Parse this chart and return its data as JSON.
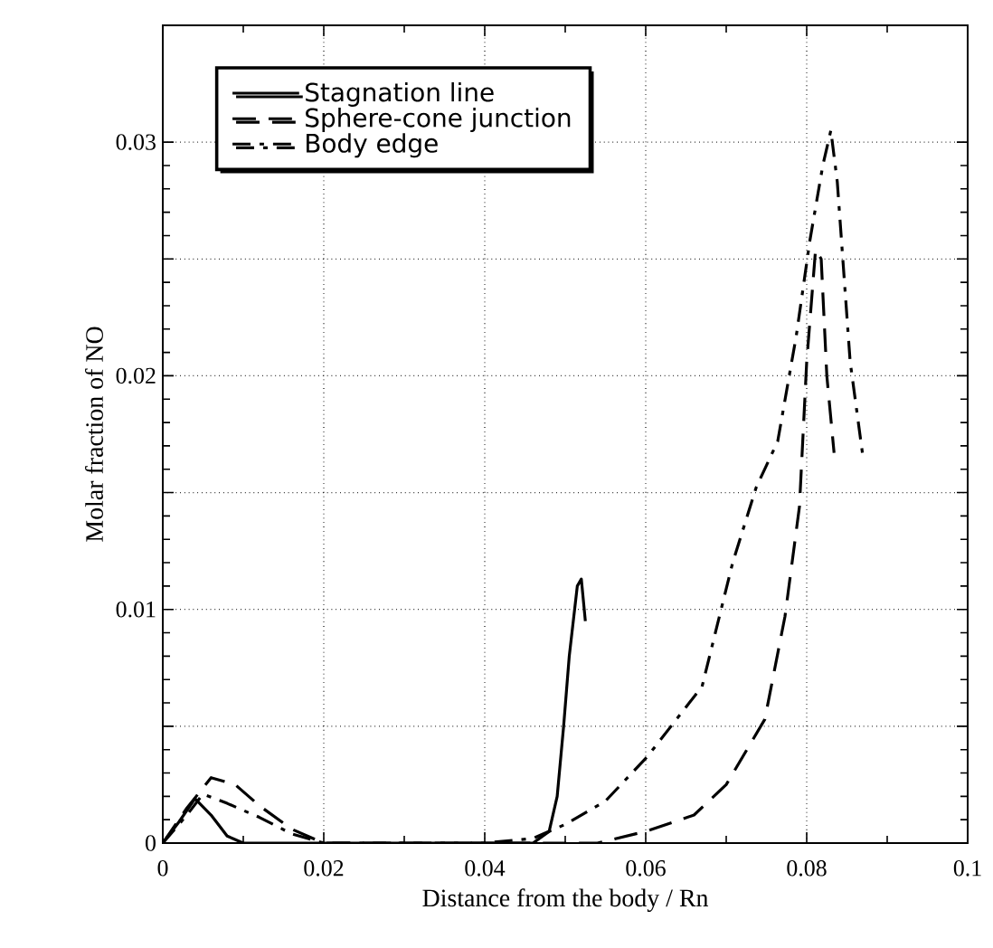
{
  "chart_data": {
    "type": "line",
    "xlabel": "Distance from the body / Rn",
    "ylabel": "Molar fraction of NO",
    "xlim": [
      0,
      0.1
    ],
    "ylim": [
      0,
      0.035
    ],
    "xticks": [
      0,
      0.02,
      0.04,
      0.06,
      0.08,
      0.1
    ],
    "yticks": [
      0,
      {
        "value": 0.005,
        "label": null
      },
      0.01,
      {
        "value": 0.015,
        "label": null
      },
      0.02,
      {
        "value": 0.025,
        "label": null
      },
      0.03
    ],
    "grid": true,
    "legend": "top left",
    "marker": "none",
    "series": [
      {
        "name": "Stagnation line",
        "color": "#000000",
        "line_style": "solid",
        "x": [
          0,
          0.002,
          0.004,
          0.006,
          0.008,
          0.01,
          0.03,
          0.046,
          0.048,
          0.049,
          0.0498,
          0.0505,
          0.0515,
          0.052,
          0.0525
        ],
        "values": [
          0,
          0.0009,
          0.0019,
          0.0012,
          0.0003,
          0,
          0,
          0,
          0.0005,
          0.002,
          0.005,
          0.008,
          0.011,
          0.0113,
          0.0095
        ]
      },
      {
        "name": "Sphere-cone  junction",
        "color": "#000000",
        "line_style": "dashed",
        "x": [
          0,
          0.003,
          0.006,
          0.009,
          0.012,
          0.016,
          0.02,
          0.04,
          0.054,
          0.06,
          0.066,
          0.07,
          0.0748,
          0.0773,
          0.0791,
          0.08,
          0.0811,
          0.0818,
          0.0825,
          0.0834
        ],
        "values": [
          0,
          0.0015,
          0.0028,
          0.0025,
          0.0016,
          0.0006,
          0,
          0,
          0,
          0.0005,
          0.0012,
          0.0025,
          0.0053,
          0.0097,
          0.0144,
          0.0206,
          0.0254,
          0.025,
          0.02,
          0.0167
        ]
      },
      {
        "name": "Body edge",
        "color": "#000000",
        "line_style": "dashdot",
        "x": [
          0,
          0.003,
          0.005,
          0.008,
          0.012,
          0.016,
          0.02,
          0.04,
          0.046,
          0.05,
          0.055,
          0.0602,
          0.067,
          0.0708,
          0.0737,
          0.0764,
          0.0787,
          0.0804,
          0.082,
          0.083,
          0.0838,
          0.0854,
          0.087
        ],
        "values": [
          0,
          0.0012,
          0.0021,
          0.0017,
          0.0011,
          0.0004,
          0,
          0,
          0.0002,
          0.0008,
          0.0018,
          0.0037,
          0.0067,
          0.012,
          0.0152,
          0.0172,
          0.0217,
          0.0258,
          0.029,
          0.0305,
          0.0283,
          0.0206,
          0.0165
        ]
      }
    ]
  }
}
